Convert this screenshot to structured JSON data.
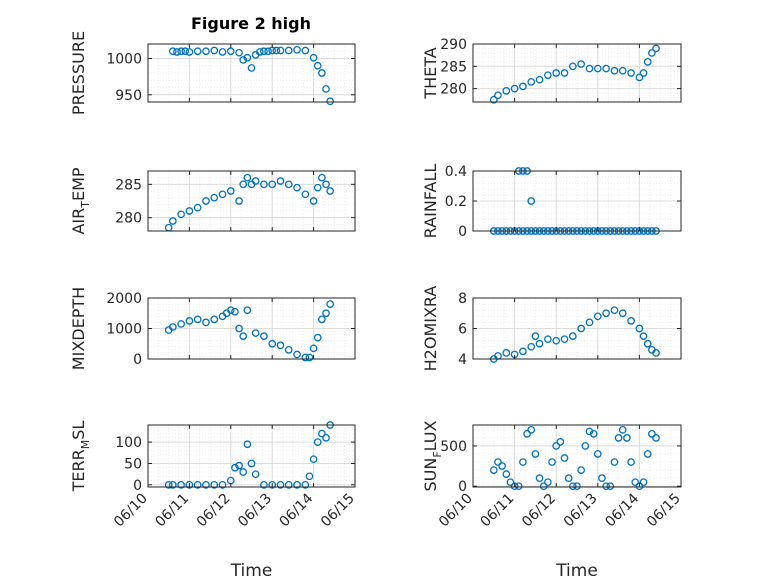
{
  "figure_title": "Figure 2 high",
  "colors": {
    "marker": "#0072BD",
    "axis": "#262626",
    "grid_major": "#DCDCDC",
    "grid_minor": "#EDEDED"
  },
  "chart_data": [
    {
      "type": "scatter",
      "id": "pressure",
      "title": "Figure 2 high",
      "ylabel": "PRESSURE",
      "ylim": [
        940,
        1020
      ],
      "yticks": [
        "950",
        "1000"
      ],
      "ytick_values": [
        950,
        1000
      ],
      "xlabel": "",
      "xlim": [
        "06/10",
        "06/15"
      ],
      "grid": true,
      "x": [
        10.6,
        10.7,
        10.8,
        10.9,
        11.0,
        11.2,
        11.4,
        11.6,
        11.8,
        12.0,
        12.2,
        12.3,
        12.4,
        12.5,
        12.6,
        12.7,
        12.8,
        12.9,
        13.0,
        13.1,
        13.2,
        13.4,
        13.6,
        13.8,
        14.0,
        14.1,
        14.2,
        14.3,
        14.4
      ],
      "y": [
        1010,
        1009,
        1010,
        1010,
        1009,
        1010,
        1010,
        1011,
        1009,
        1010,
        1008,
        998,
        1001,
        987,
        1005,
        1009,
        1010,
        1010,
        1011,
        1011,
        1011,
        1011,
        1012,
        1011,
        1001,
        990,
        980,
        958,
        941
      ]
    },
    {
      "type": "scatter",
      "id": "theta",
      "ylabel": "THETA",
      "ylim": [
        277,
        290
      ],
      "yticks": [
        "280",
        "285",
        "290"
      ],
      "ytick_values": [
        280,
        285,
        290
      ],
      "xlabel": "",
      "xlim": [
        "06/10",
        "06/15"
      ],
      "grid": true,
      "x": [
        10.5,
        10.6,
        10.8,
        11.0,
        11.2,
        11.4,
        11.6,
        11.8,
        12.0,
        12.2,
        12.4,
        12.6,
        12.8,
        13.0,
        13.2,
        13.4,
        13.6,
        13.8,
        14.0,
        14.1,
        14.2,
        14.3,
        14.4
      ],
      "y": [
        277.5,
        278.5,
        279.5,
        280.0,
        280.5,
        281.5,
        282.0,
        283.0,
        283.5,
        283.5,
        285.0,
        285.5,
        284.5,
        284.5,
        284.5,
        284.0,
        284.0,
        283.5,
        282.5,
        283.5,
        286.0,
        288.0,
        289.0
      ]
    },
    {
      "type": "scatter",
      "id": "airtemp",
      "ylabel": "AIR_TEMP",
      "ylim": [
        278,
        287
      ],
      "yticks": [
        "280",
        "285"
      ],
      "ytick_values": [
        280,
        285
      ],
      "xlabel": "",
      "xlim": [
        "06/10",
        "06/15"
      ],
      "grid": true,
      "x": [
        10.5,
        10.6,
        10.8,
        11.0,
        11.2,
        11.4,
        11.6,
        11.8,
        12.0,
        12.2,
        12.3,
        12.4,
        12.5,
        12.6,
        12.8,
        13.0,
        13.2,
        13.4,
        13.6,
        13.8,
        14.0,
        14.1,
        14.2,
        14.3,
        14.4
      ],
      "y": [
        278.5,
        279.5,
        280.5,
        281.0,
        281.5,
        282.5,
        283.0,
        283.5,
        284.0,
        282.5,
        285.0,
        286.0,
        285.0,
        285.5,
        285.0,
        285.0,
        285.5,
        285.0,
        284.5,
        283.5,
        282.5,
        284.5,
        286.0,
        285.0,
        284.0
      ]
    },
    {
      "type": "scatter",
      "id": "rainfall",
      "ylabel": "RAINFALL",
      "ylim": [
        0,
        0.4
      ],
      "yticks": [
        "0",
        "0.2",
        "0.4"
      ],
      "ytick_values": [
        0,
        0.2,
        0.4
      ],
      "xlabel": "",
      "xlim": [
        "06/10",
        "06/15"
      ],
      "grid": true,
      "x": [
        10.5,
        10.6,
        10.7,
        10.8,
        10.9,
        11.0,
        11.1,
        11.2,
        11.3,
        11.4,
        11.5,
        11.6,
        11.7,
        11.8,
        11.9,
        12.0,
        12.1,
        12.2,
        12.3,
        12.4,
        12.5,
        12.6,
        12.7,
        12.8,
        12.9,
        13.0,
        13.1,
        13.2,
        13.3,
        13.4,
        13.5,
        13.6,
        13.7,
        13.8,
        13.9,
        14.0,
        14.1,
        14.2,
        14.3,
        14.4,
        11.1,
        11.2,
        11.3,
        11.4
      ],
      "y": [
        0,
        0,
        0,
        0,
        0,
        0,
        0,
        0,
        0,
        0,
        0,
        0,
        0,
        0,
        0,
        0,
        0,
        0,
        0,
        0,
        0,
        0,
        0,
        0,
        0,
        0,
        0,
        0,
        0,
        0,
        0,
        0,
        0,
        0,
        0,
        0,
        0,
        0,
        0,
        0,
        0.4,
        0.4,
        0.4,
        0.2
      ]
    },
    {
      "type": "scatter",
      "id": "mixdepth",
      "ylabel": "MIXDEPTH",
      "ylim": [
        0,
        2000
      ],
      "yticks": [
        "0",
        "1000",
        "2000"
      ],
      "ytick_values": [
        0,
        1000,
        2000
      ],
      "xlabel": "",
      "xlim": [
        "06/10",
        "06/15"
      ],
      "grid": true,
      "x": [
        10.5,
        10.6,
        10.8,
        11.0,
        11.2,
        11.4,
        11.6,
        11.8,
        11.9,
        12.0,
        12.1,
        12.2,
        12.3,
        12.4,
        12.6,
        12.8,
        13.0,
        13.2,
        13.4,
        13.6,
        13.8,
        13.9,
        14.0,
        14.1,
        14.2,
        14.3,
        14.4
      ],
      "y": [
        950,
        1050,
        1150,
        1250,
        1300,
        1200,
        1300,
        1400,
        1500,
        1600,
        1550,
        1000,
        750,
        1600,
        850,
        750,
        500,
        450,
        300,
        150,
        50,
        50,
        350,
        700,
        1300,
        1500,
        1800
      ]
    },
    {
      "type": "scatter",
      "id": "h2omixra",
      "ylabel": "H2OMIXRA",
      "ylim": [
        4,
        8
      ],
      "yticks": [
        "4",
        "6",
        "8"
      ],
      "ytick_values": [
        4,
        6,
        8
      ],
      "xlabel": "",
      "xlim": [
        "06/10",
        "06/15"
      ],
      "grid": true,
      "x": [
        10.5,
        10.6,
        10.8,
        11.0,
        11.2,
        11.4,
        11.5,
        11.6,
        11.8,
        12.0,
        12.2,
        12.4,
        12.6,
        12.8,
        13.0,
        13.2,
        13.4,
        13.6,
        13.8,
        14.0,
        14.1,
        14.2,
        14.3,
        14.4
      ],
      "y": [
        4.0,
        4.2,
        4.4,
        4.3,
        4.5,
        4.8,
        5.5,
        5.0,
        5.3,
        5.2,
        5.3,
        5.5,
        6.0,
        6.4,
        6.8,
        7.0,
        7.2,
        7.0,
        6.5,
        6.0,
        5.5,
        5.0,
        4.6,
        4.4
      ]
    },
    {
      "type": "scatter",
      "id": "terrmsl",
      "ylabel": "TERR_MSL",
      "ylim": [
        -5,
        140
      ],
      "yticks": [
        "0",
        "50",
        "100"
      ],
      "ytick_values": [
        0,
        50,
        100
      ],
      "xlabel": "Time",
      "xlim": [
        "06/10",
        "06/15"
      ],
      "xticks": [
        "06/10",
        "06/11",
        "06/12",
        "06/13",
        "06/14",
        "06/15"
      ],
      "xtick_values": [
        10,
        11,
        12,
        13,
        14,
        15
      ],
      "grid": true,
      "x": [
        10.5,
        10.6,
        10.8,
        11.0,
        11.2,
        11.4,
        11.6,
        11.8,
        12.0,
        12.1,
        12.2,
        12.3,
        12.4,
        12.5,
        12.6,
        12.8,
        13.0,
        13.2,
        13.4,
        13.6,
        13.8,
        13.9,
        14.0,
        14.1,
        14.2,
        14.3,
        14.4
      ],
      "y": [
        0,
        0,
        0,
        0,
        0,
        0,
        0,
        0,
        10,
        40,
        45,
        30,
        95,
        50,
        25,
        0,
        0,
        0,
        0,
        0,
        0,
        20,
        60,
        100,
        120,
        110,
        140
      ]
    },
    {
      "type": "scatter",
      "id": "sunflux",
      "ylabel": "SUN_FLUX",
      "ylim": [
        -10,
        760
      ],
      "yticks": [
        "0",
        "500"
      ],
      "ytick_values": [
        0,
        500
      ],
      "xlabel": "Time",
      "xlim": [
        "06/10",
        "06/15"
      ],
      "xticks": [
        "06/10",
        "06/11",
        "06/12",
        "06/13",
        "06/14",
        "06/15"
      ],
      "xtick_values": [
        10,
        11,
        12,
        13,
        14,
        15
      ],
      "grid": true,
      "x": [
        10.5,
        10.6,
        10.7,
        10.8,
        10.9,
        11.0,
        11.1,
        11.2,
        11.3,
        11.4,
        11.5,
        11.6,
        11.7,
        11.8,
        11.9,
        12.0,
        12.1,
        12.2,
        12.3,
        12.4,
        12.5,
        12.6,
        12.7,
        12.8,
        12.9,
        13.0,
        13.1,
        13.2,
        13.3,
        13.4,
        13.5,
        13.6,
        13.7,
        13.8,
        13.9,
        14.0,
        14.1,
        14.2,
        14.3,
        14.4
      ],
      "y": [
        200,
        300,
        250,
        150,
        50,
        0,
        0,
        300,
        650,
        700,
        400,
        100,
        0,
        50,
        300,
        500,
        550,
        350,
        100,
        0,
        0,
        200,
        500,
        680,
        650,
        400,
        100,
        0,
        0,
        300,
        600,
        700,
        600,
        300,
        50,
        0,
        50,
        400,
        650,
        600
      ]
    }
  ]
}
